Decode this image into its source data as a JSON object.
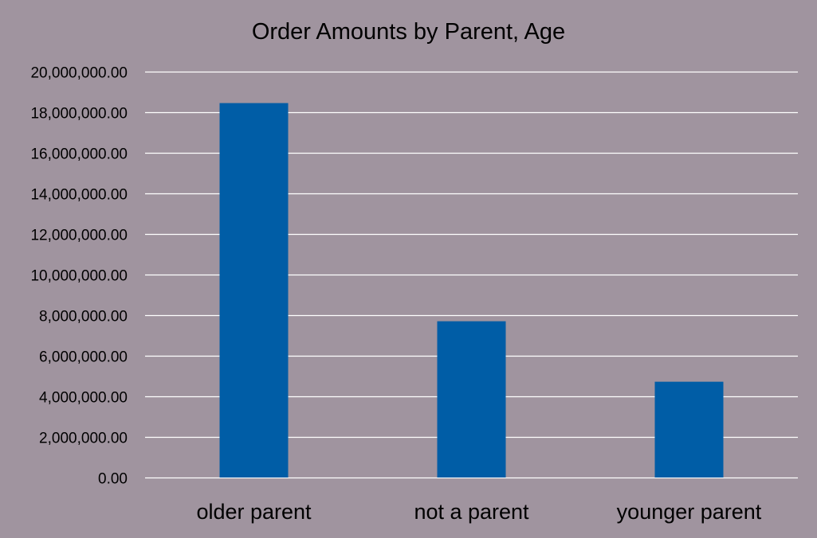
{
  "chart_data": {
    "type": "bar",
    "title": "Order Amounts by Parent, Age",
    "categories": [
      "older parent",
      "not a parent",
      "younger parent"
    ],
    "values": [
      18450000,
      7700000,
      4720000
    ],
    "xlabel": "",
    "ylabel": "",
    "ylim": [
      0,
      20000000
    ],
    "yticks": [
      0,
      2000000,
      4000000,
      6000000,
      8000000,
      10000000,
      12000000,
      14000000,
      16000000,
      18000000,
      20000000
    ],
    "ytick_labels": [
      "0.00",
      "2,000,000.00",
      "4,000,000.00",
      "6,000,000.00",
      "8,000,000.00",
      "10,000,000.00",
      "12,000,000.00",
      "14,000,000.00",
      "16,000,000.00",
      "18,000,000.00",
      "20,000,000.00"
    ],
    "grid": true,
    "legend": "none",
    "colors": {
      "bar": "#005da6",
      "background": "#a0949f",
      "grid": "#ffffff",
      "text": "#000000"
    }
  }
}
